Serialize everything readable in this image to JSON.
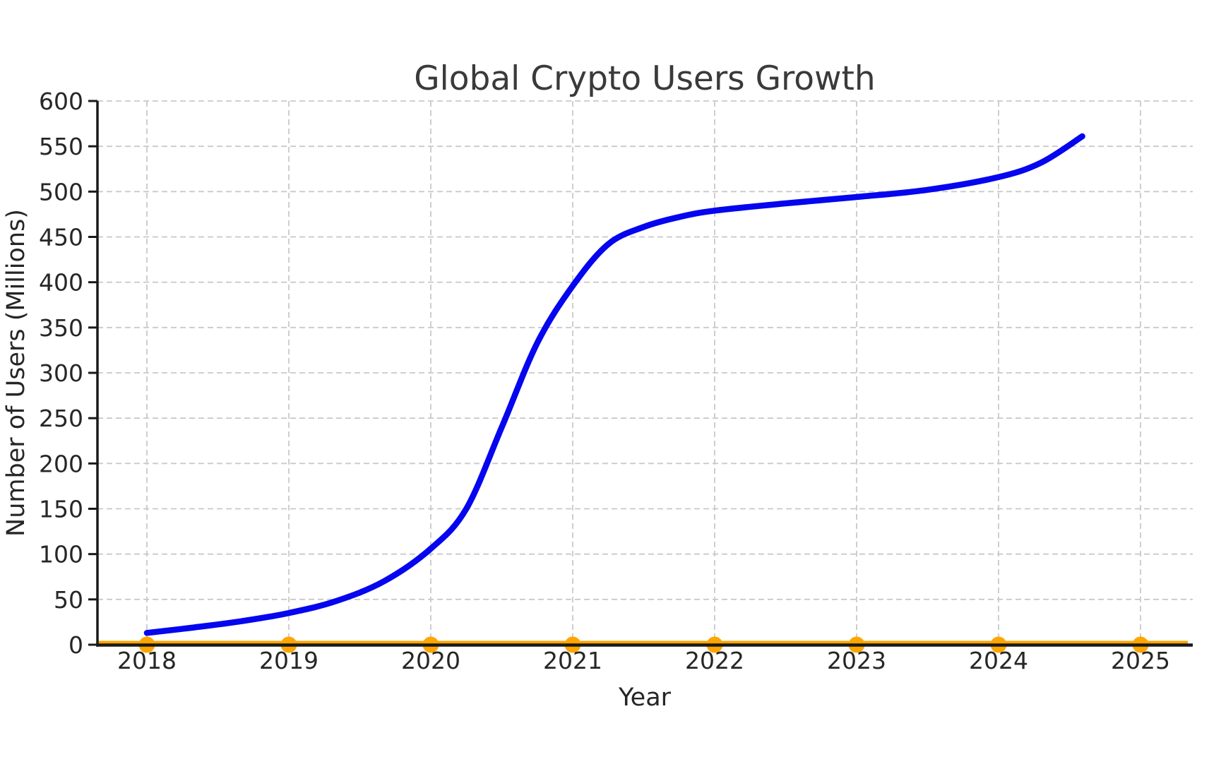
{
  "title": "Global Crypto Users Growth",
  "colors": {
    "curve_blue": "#0505F0",
    "marker_orange": "#FFA500",
    "grid_gray": "#C9C9C9",
    "spine_dark": "#1A1A1A",
    "text_dark": "#262626",
    "title_gray": "#3A3A3A",
    "background": "#FFFFFF"
  },
  "chart_data": {
    "type": "line",
    "title": "Global Crypto Users Growth",
    "xlabel": "Year",
    "ylabel": "Number of Users (Millions)",
    "xlim": [
      2017.65,
      2025.37
    ],
    "ylim": [
      0,
      600
    ],
    "x_ticks": [
      2018,
      2019,
      2020,
      2021,
      2022,
      2023,
      2024,
      2025
    ],
    "y_ticks": [
      0,
      50,
      100,
      150,
      200,
      250,
      300,
      350,
      400,
      450,
      500,
      550,
      600
    ],
    "grid": true,
    "grid_style": "dashed",
    "legend": false,
    "readings_at_ticks": {
      "2018": 13,
      "2019": 35,
      "2020": 106,
      "2021": 396,
      "2022": 479,
      "2023": 494,
      "2024": 516
    },
    "curve_end": [
      2024.6,
      561
    ],
    "series": [
      {
        "name": "global-crypto-users-smoothed-curve",
        "color": "#0505F0",
        "style": "solid",
        "line_width": 8.5,
        "marker": "none",
        "points": [
          [
            2018.0,
            13
          ],
          [
            2018.33,
            19
          ],
          [
            2018.67,
            26
          ],
          [
            2019.0,
            35
          ],
          [
            2019.33,
            48
          ],
          [
            2019.67,
            70
          ],
          [
            2020.0,
            106
          ],
          [
            2020.25,
            150
          ],
          [
            2020.5,
            240
          ],
          [
            2020.75,
            333
          ],
          [
            2021.0,
            396
          ],
          [
            2021.25,
            442
          ],
          [
            2021.5,
            461
          ],
          [
            2021.75,
            472
          ],
          [
            2022.0,
            479
          ],
          [
            2022.5,
            487
          ],
          [
            2023.0,
            494
          ],
          [
            2023.5,
            502
          ],
          [
            2024.0,
            516
          ],
          [
            2024.3,
            532
          ],
          [
            2024.59,
            561
          ]
        ]
      },
      {
        "name": "baseline-zero-markers",
        "color": "#FFA500",
        "style": "solid",
        "line_width": 4,
        "marker": "circle",
        "points": [
          [
            2018,
            0
          ],
          [
            2019,
            0
          ],
          [
            2020,
            0
          ],
          [
            2021,
            0
          ],
          [
            2022,
            0
          ],
          [
            2023,
            0
          ],
          [
            2024,
            0
          ],
          [
            2025,
            0
          ]
        ]
      }
    ]
  }
}
